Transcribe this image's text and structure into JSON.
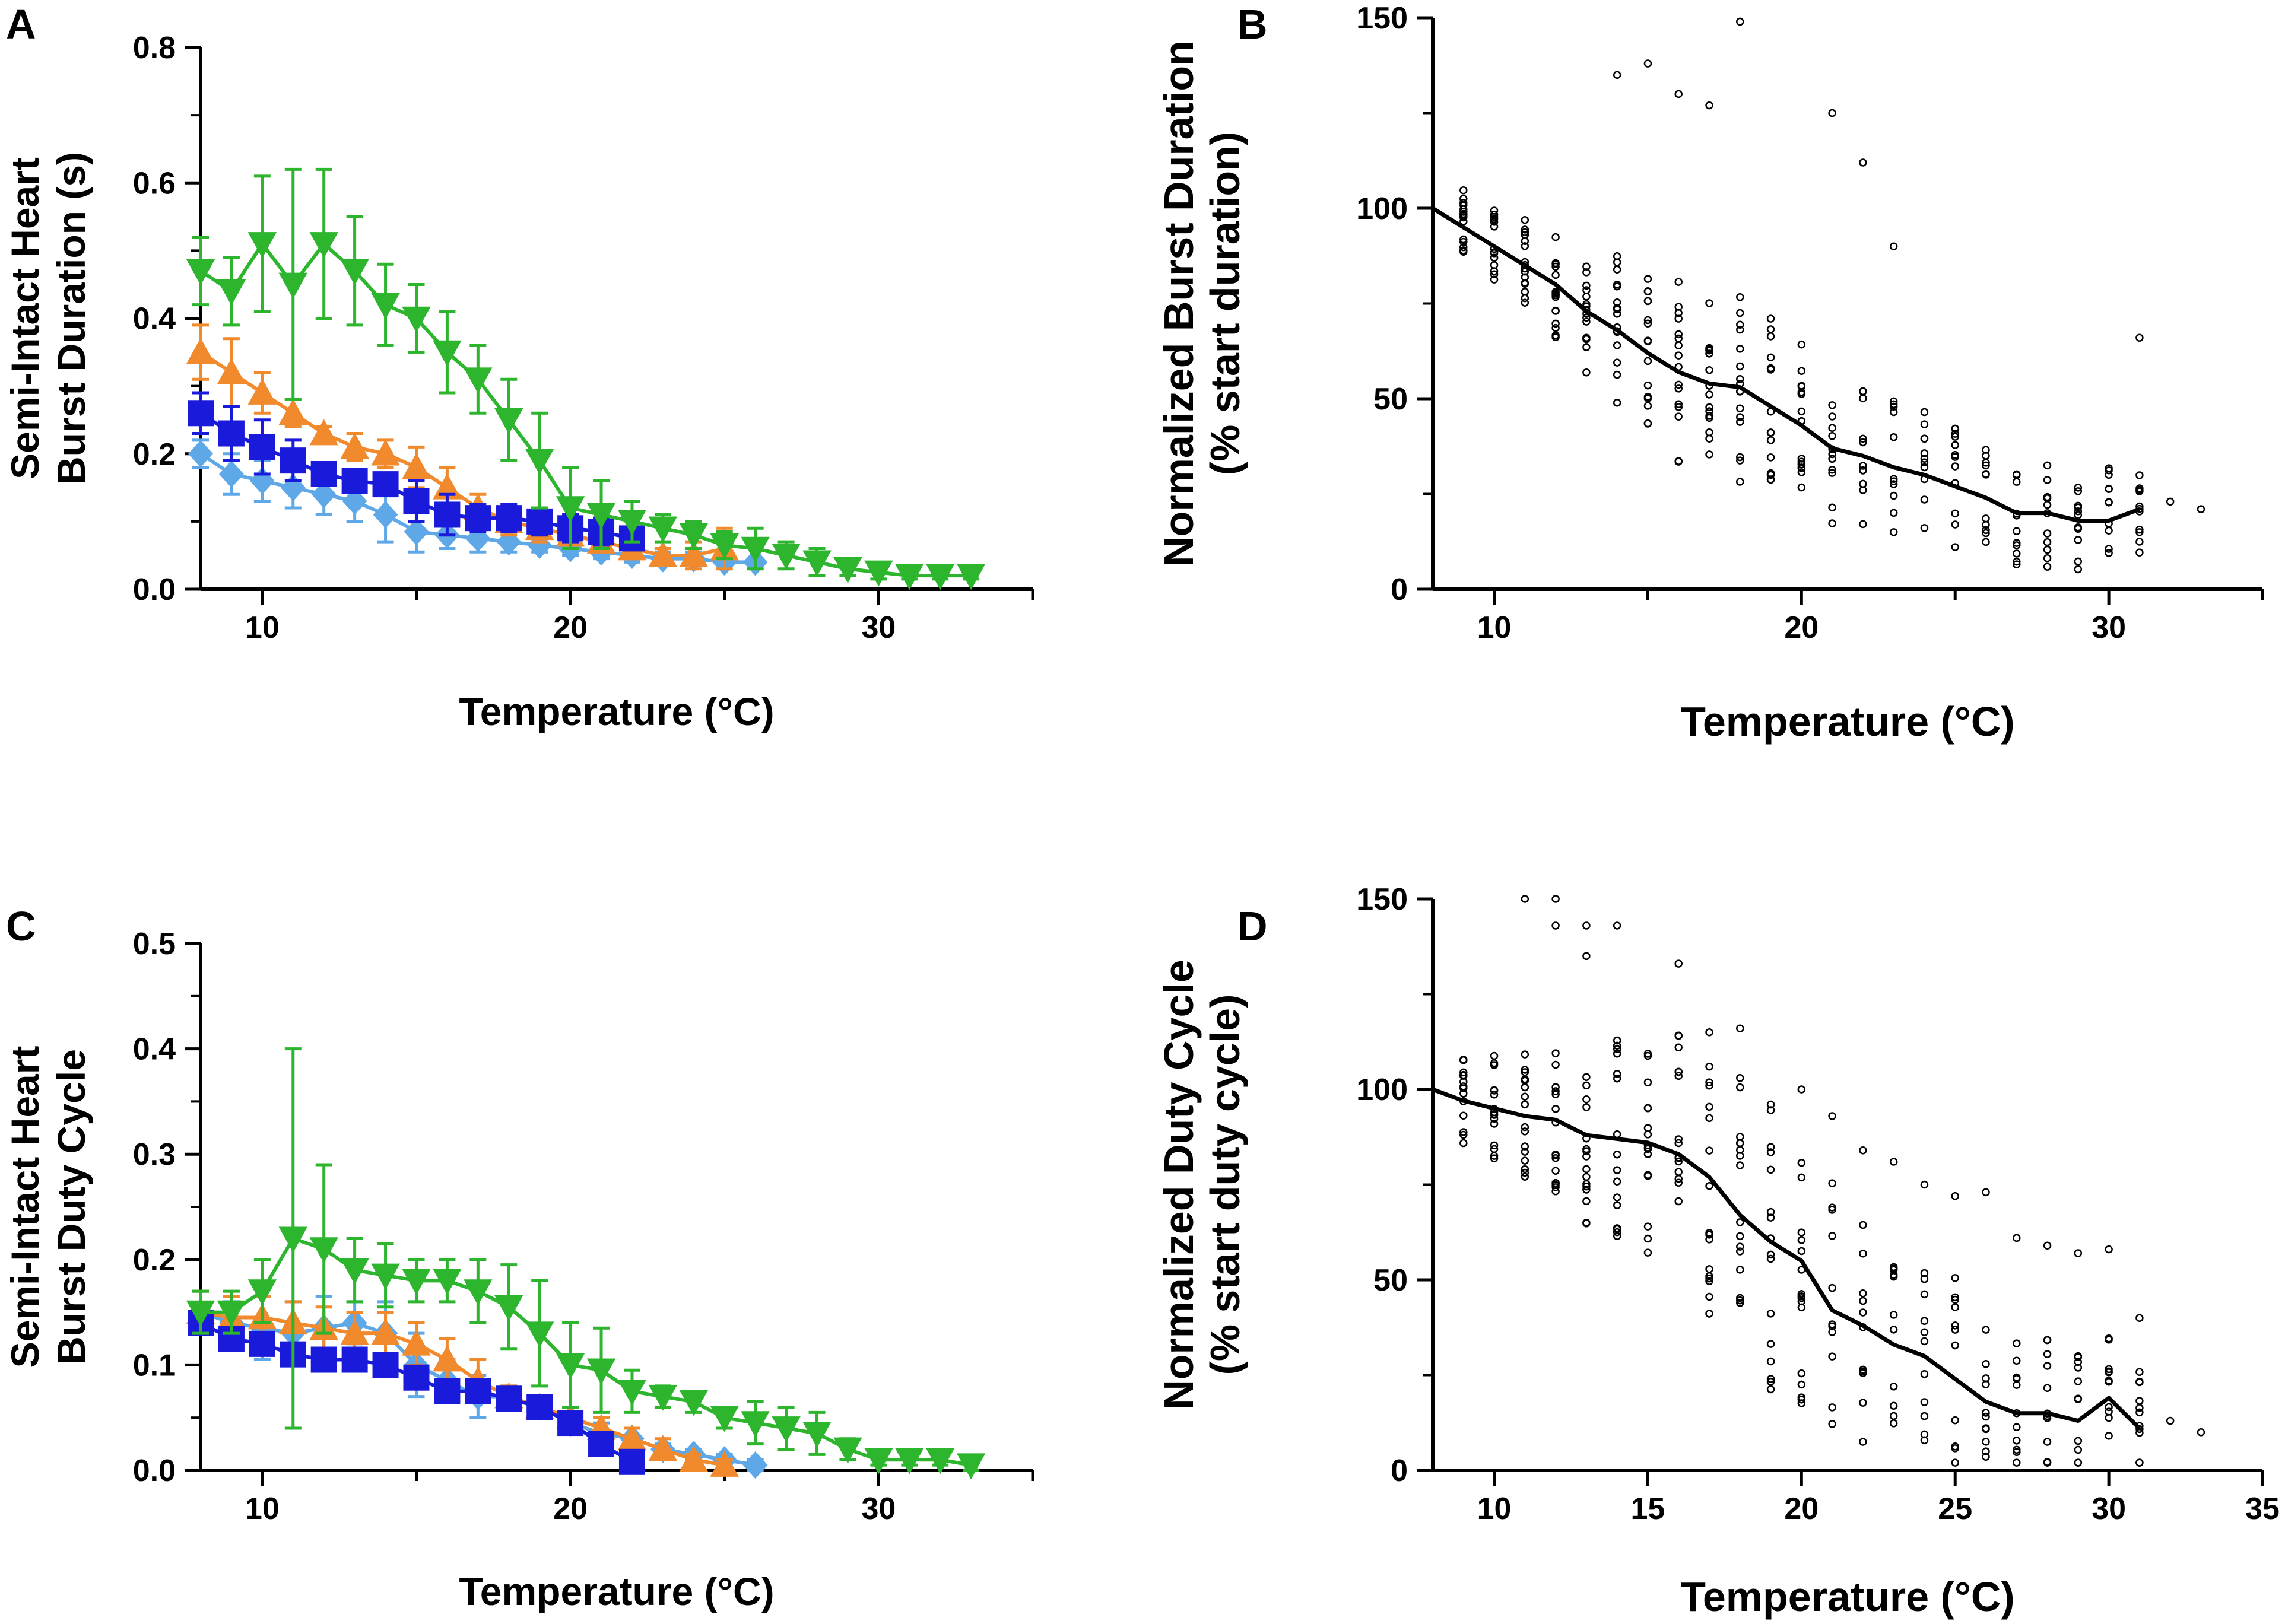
{
  "chart_data": [
    {
      "panel": "A",
      "type": "line",
      "xlabel": "Temperature (°C)",
      "ylabel_line1": "Semi-Intact Heart",
      "ylabel_line2": "Burst Duration (s)",
      "xlim": [
        8,
        35
      ],
      "ylim": [
        0,
        0.8
      ],
      "xticks": [
        10,
        20,
        30
      ],
      "yticks": [
        "0.0",
        "0.2",
        "0.4",
        "0.6",
        "0.8"
      ],
      "series": [
        {
          "name": "light blue diamond",
          "color": "#5fa8e8",
          "marker": "diamond",
          "x": [
            8,
            9,
            10,
            11,
            12,
            13,
            14,
            15,
            16,
            17,
            18,
            19,
            20,
            21,
            22,
            23,
            24,
            25,
            26
          ],
          "y": [
            0.2,
            0.17,
            0.16,
            0.15,
            0.14,
            0.13,
            0.11,
            0.085,
            0.08,
            0.075,
            0.07,
            0.065,
            0.06,
            0.055,
            0.05,
            0.045,
            0.045,
            0.04,
            0.04
          ],
          "err": [
            0.02,
            0.03,
            0.03,
            0.03,
            0.03,
            0.03,
            0.04,
            0.03,
            0.02,
            0.02,
            0.015,
            0.01,
            0.01,
            0.01,
            0.01,
            0.01,
            0.01,
            0.005,
            0.005
          ]
        },
        {
          "name": "orange triangle",
          "color": "#f08a2c",
          "marker": "triangle-up",
          "x": [
            8,
            9,
            10,
            11,
            12,
            13,
            14,
            15,
            16,
            17,
            18,
            19,
            20,
            21,
            22,
            23,
            24,
            25
          ],
          "y": [
            0.35,
            0.32,
            0.29,
            0.26,
            0.23,
            0.21,
            0.2,
            0.18,
            0.15,
            0.12,
            0.1,
            0.09,
            0.08,
            0.07,
            0.06,
            0.05,
            0.05,
            0.06
          ],
          "err": [
            0.04,
            0.05,
            0.03,
            0.02,
            0.01,
            0.02,
            0.02,
            0.03,
            0.03,
            0.02,
            0.02,
            0.02,
            0.01,
            0.01,
            0.01,
            0.01,
            0.02,
            0.03
          ]
        },
        {
          "name": "blue square",
          "color": "#1a1adb",
          "marker": "square",
          "x": [
            8,
            9,
            10,
            11,
            12,
            13,
            14,
            15,
            16,
            17,
            18,
            19,
            20,
            21,
            22
          ],
          "y": [
            0.26,
            0.23,
            0.21,
            0.19,
            0.17,
            0.16,
            0.155,
            0.13,
            0.11,
            0.105,
            0.105,
            0.1,
            0.09,
            0.085,
            0.075
          ],
          "err": [
            0.03,
            0.04,
            0.04,
            0.03,
            0.01,
            0.01,
            0.01,
            0.03,
            0.03,
            0.02,
            0.02,
            0.02,
            0.02,
            0.02,
            0.01
          ]
        },
        {
          "name": "green inverted triangle",
          "color": "#2db52d",
          "marker": "triangle-down",
          "x": [
            8,
            9,
            10,
            11,
            12,
            13,
            14,
            15,
            16,
            17,
            18,
            19,
            20,
            21,
            22,
            23,
            24,
            25,
            26,
            27,
            28,
            29,
            30,
            31,
            32,
            33
          ],
          "y": [
            0.47,
            0.44,
            0.51,
            0.45,
            0.51,
            0.47,
            0.42,
            0.4,
            0.35,
            0.31,
            0.25,
            0.19,
            0.12,
            0.11,
            0.1,
            0.09,
            0.08,
            0.065,
            0.06,
            0.05,
            0.04,
            0.03,
            0.025,
            0.02,
            0.02,
            0.02
          ],
          "err": [
            0.05,
            0.05,
            0.1,
            0.17,
            0.11,
            0.08,
            0.06,
            0.05,
            0.06,
            0.05,
            0.06,
            0.07,
            0.06,
            0.05,
            0.03,
            0.02,
            0.02,
            0.02,
            0.03,
            0.02,
            0.02,
            0.01,
            0.01,
            0.005,
            0.005,
            0.005
          ]
        }
      ]
    },
    {
      "panel": "B",
      "type": "scatter",
      "xlabel": "Temperature (°C)",
      "ylabel_line1": "Normalized Burst Duration",
      "ylabel_line2": "(% start duration)",
      "xlim": [
        8,
        35
      ],
      "ylim": [
        0,
        150
      ],
      "xticks": [
        10,
        20,
        30
      ],
      "yticks": [
        "0",
        "50",
        "100",
        "150"
      ],
      "mean_line": {
        "x": [
          8,
          9,
          10,
          11,
          12,
          13,
          14,
          15,
          16,
          17,
          18,
          19,
          20,
          21,
          22,
          23,
          24,
          25,
          26,
          27,
          28,
          29,
          30,
          31
        ],
        "y": [
          100,
          95,
          90,
          85,
          80,
          73,
          68,
          62,
          57,
          54,
          53,
          48,
          43,
          37,
          35,
          32,
          30,
          27,
          24,
          20,
          20,
          18,
          18,
          21
        ]
      },
      "scatter_spread": [
        6,
        7,
        8,
        9,
        10,
        12,
        14,
        16,
        17,
        18,
        18,
        17,
        16,
        15,
        14,
        13,
        12,
        12,
        11,
        11,
        11,
        10,
        10,
        9
      ],
      "scatter_outliers": [
        [
          15,
          138
        ],
        [
          14,
          135
        ],
        [
          16,
          130
        ],
        [
          17,
          127
        ],
        [
          18,
          149
        ],
        [
          21,
          125
        ],
        [
          22,
          112
        ],
        [
          23,
          90
        ],
        [
          31,
          66
        ],
        [
          32,
          23
        ],
        [
          33,
          21
        ]
      ]
    },
    {
      "panel": "C",
      "type": "line",
      "xlabel": "Temperature (°C)",
      "ylabel_line1": "Semi-Intact Heart",
      "ylabel_line2": "Burst Duty Cycle",
      "xlim": [
        8,
        35
      ],
      "ylim": [
        0,
        0.5
      ],
      "xticks": [
        10,
        20,
        30
      ],
      "yticks": [
        "0.0",
        "0.1",
        "0.2",
        "0.3",
        "0.4",
        "0.5"
      ],
      "series": [
        {
          "name": "light blue diamond",
          "color": "#5fa8e8",
          "marker": "diamond",
          "x": [
            8,
            9,
            10,
            11,
            12,
            13,
            14,
            15,
            16,
            17,
            18,
            19,
            20,
            21,
            22,
            23,
            24,
            25,
            26
          ],
          "y": [
            0.15,
            0.14,
            0.135,
            0.13,
            0.135,
            0.14,
            0.13,
            0.1,
            0.085,
            0.07,
            0.07,
            0.06,
            0.045,
            0.035,
            0.03,
            0.02,
            0.015,
            0.01,
            0.005
          ],
          "err": [
            0.02,
            0.02,
            0.03,
            0.03,
            0.03,
            0.02,
            0.03,
            0.03,
            0.02,
            0.02,
            0.01,
            0.01,
            0.01,
            0.01,
            0.01,
            0.005,
            0.005,
            0.005,
            0.005
          ]
        },
        {
          "name": "orange triangle",
          "color": "#f08a2c",
          "marker": "triangle-up",
          "x": [
            8,
            9,
            10,
            11,
            12,
            13,
            14,
            15,
            16,
            17,
            18,
            19,
            20,
            21,
            22,
            23,
            24,
            25
          ],
          "y": [
            0.15,
            0.145,
            0.145,
            0.14,
            0.135,
            0.13,
            0.13,
            0.12,
            0.105,
            0.085,
            0.07,
            0.06,
            0.05,
            0.04,
            0.03,
            0.02,
            0.01,
            0.005
          ],
          "err": [
            0.02,
            0.02,
            0.02,
            0.02,
            0.02,
            0.02,
            0.02,
            0.02,
            0.02,
            0.02,
            0.01,
            0.01,
            0.01,
            0.01,
            0.01,
            0.01,
            0.005,
            0.005
          ]
        },
        {
          "name": "blue square",
          "color": "#1a1adb",
          "marker": "square",
          "x": [
            8,
            9,
            10,
            11,
            12,
            13,
            14,
            15,
            16,
            17,
            18,
            19,
            20,
            21,
            22
          ],
          "y": [
            0.14,
            0.125,
            0.12,
            0.11,
            0.105,
            0.105,
            0.1,
            0.088,
            0.075,
            0.075,
            0.068,
            0.06,
            0.045,
            0.025,
            0.008
          ],
          "err": [
            0.01,
            0.01,
            0.01,
            0.01,
            0.005,
            0.005,
            0.01,
            0.01,
            0.01,
            0.01,
            0.01,
            0.01,
            0.01,
            0.01,
            0.005
          ]
        },
        {
          "name": "green inverted triangle",
          "color": "#2db52d",
          "marker": "triangle-down",
          "x": [
            8,
            9,
            10,
            11,
            12,
            13,
            14,
            15,
            16,
            17,
            18,
            19,
            20,
            21,
            22,
            23,
            24,
            25,
            26,
            27,
            28,
            29,
            30,
            31,
            32,
            33
          ],
          "y": [
            0.15,
            0.15,
            0.17,
            0.22,
            0.21,
            0.19,
            0.185,
            0.18,
            0.18,
            0.17,
            0.155,
            0.13,
            0.1,
            0.095,
            0.075,
            0.07,
            0.065,
            0.05,
            0.045,
            0.04,
            0.035,
            0.02,
            0.01,
            0.01,
            0.01,
            0.005
          ],
          "err": [
            0.02,
            0.02,
            0.03,
            0.18,
            0.08,
            0.03,
            0.03,
            0.02,
            0.02,
            0.03,
            0.04,
            0.05,
            0.04,
            0.04,
            0.02,
            0.01,
            0.01,
            0.01,
            0.02,
            0.02,
            0.02,
            0.01,
            0.005,
            0.005,
            0.005,
            0.005
          ]
        }
      ]
    },
    {
      "panel": "D",
      "type": "scatter",
      "xlabel": "Temperature (°C)",
      "ylabel_line1": "Normalized Duty Cycle",
      "ylabel_line2": "(% start duty cycle)",
      "xlim": [
        8,
        35
      ],
      "ylim": [
        0,
        150
      ],
      "xticks": [
        10,
        15,
        20,
        25,
        30,
        35
      ],
      "yticks": [
        "0",
        "50",
        "100",
        "150"
      ],
      "mean_line": {
        "x": [
          8,
          9,
          10,
          11,
          12,
          13,
          14,
          15,
          16,
          17,
          18,
          19,
          20,
          21,
          22,
          23,
          24,
          25,
          26,
          27,
          28,
          29,
          30,
          31
        ],
        "y": [
          100,
          97,
          95,
          93,
          92,
          88,
          87,
          86,
          83,
          77,
          67,
          60,
          55,
          42,
          38,
          33,
          30,
          24,
          18,
          15,
          15,
          13,
          19,
          11
        ]
      },
      "scatter_spread": [
        7,
        8,
        10,
        12,
        15,
        17,
        20,
        22,
        24,
        26,
        28,
        28,
        27,
        25,
        23,
        21,
        20,
        19,
        17,
        15,
        14,
        13,
        12,
        11
      ],
      "scatter_outliers": [
        [
          11,
          150
        ],
        [
          12,
          150
        ],
        [
          12,
          143
        ],
        [
          13,
          143
        ],
        [
          13,
          135
        ],
        [
          14,
          143
        ],
        [
          16,
          133
        ],
        [
          17,
          115
        ],
        [
          18,
          116
        ],
        [
          20,
          100
        ],
        [
          21,
          93
        ],
        [
          22,
          84
        ],
        [
          23,
          81
        ],
        [
          24,
          75
        ],
        [
          25,
          72
        ],
        [
          26,
          73
        ],
        [
          27,
          61
        ],
        [
          28,
          59
        ],
        [
          29,
          57
        ],
        [
          30,
          58
        ],
        [
          31,
          40
        ],
        [
          32,
          13
        ],
        [
          33,
          10
        ]
      ]
    }
  ]
}
